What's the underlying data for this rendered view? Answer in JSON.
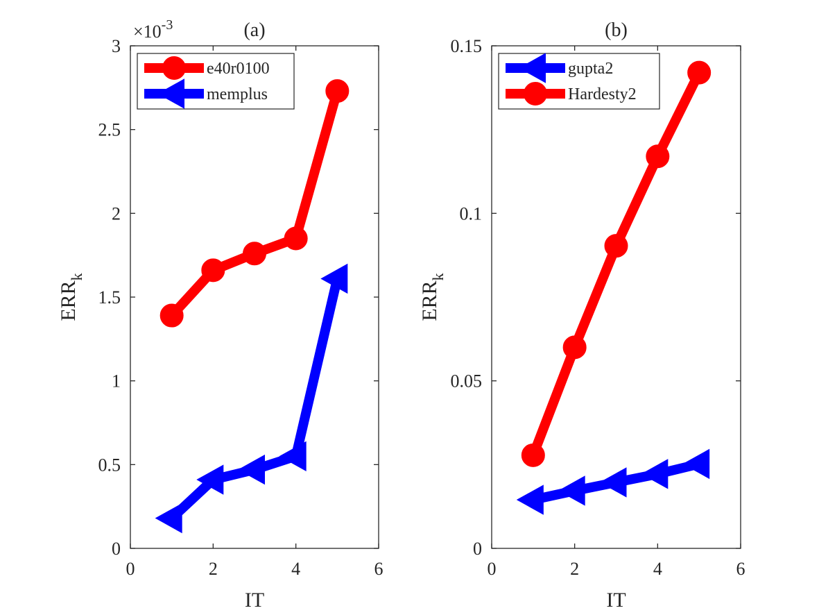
{
  "chart_data": [
    {
      "type": "line",
      "title": "(a)",
      "xlabel": "IT",
      "ylabel": "ERR",
      "ylabel_subscript": "k",
      "scale_note": {
        "base": "×10",
        "exponent": "-3"
      },
      "xlim": [
        0,
        6
      ],
      "ylim": [
        0,
        3
      ],
      "xticks": [
        0,
        2,
        4,
        6
      ],
      "xtick_labels": [
        "0",
        "2",
        "4",
        "6"
      ],
      "yticks": [
        0,
        0.5,
        1,
        1.5,
        2,
        2.5,
        3
      ],
      "ytick_labels": [
        "0",
        "0.5",
        "1",
        "1.5",
        "2",
        "2.5",
        "3"
      ],
      "legend_position": "top-left",
      "series": [
        {
          "name": "e40r0100",
          "color": "#ff0000",
          "marker": "circle",
          "x": [
            1,
            2,
            3,
            4,
            5
          ],
          "values": [
            1.39,
            1.66,
            1.76,
            1.85,
            2.73
          ]
        },
        {
          "name": "memplus",
          "color": "#0000ff",
          "marker": "triangle-left",
          "x": [
            1,
            2,
            3,
            4,
            5
          ],
          "values": [
            0.18,
            0.41,
            0.47,
            0.55,
            1.61
          ]
        }
      ]
    },
    {
      "type": "line",
      "title": "(b)",
      "xlabel": "IT",
      "ylabel": "ERR",
      "ylabel_subscript": "k",
      "xlim": [
        0,
        6
      ],
      "ylim": [
        0,
        0.15
      ],
      "xticks": [
        0,
        2,
        4,
        6
      ],
      "xtick_labels": [
        "0",
        "2",
        "4",
        "6"
      ],
      "yticks": [
        0,
        0.05,
        0.1,
        0.15
      ],
      "ytick_labels": [
        "0",
        "0.05",
        "0.1",
        "0.15"
      ],
      "legend_position": "top-left",
      "series": [
        {
          "name": "gupta2",
          "color": "#0000ff",
          "marker": "triangle-left",
          "x": [
            1,
            2,
            3,
            4,
            5
          ],
          "values": [
            0.0145,
            0.0172,
            0.0197,
            0.0222,
            0.0252
          ]
        },
        {
          "name": "Hardesty2",
          "color": "#ff0000",
          "marker": "circle",
          "x": [
            1,
            2,
            3,
            4,
            5
          ],
          "values": [
            0.0278,
            0.06,
            0.0903,
            0.117,
            0.142
          ]
        }
      ]
    }
  ]
}
